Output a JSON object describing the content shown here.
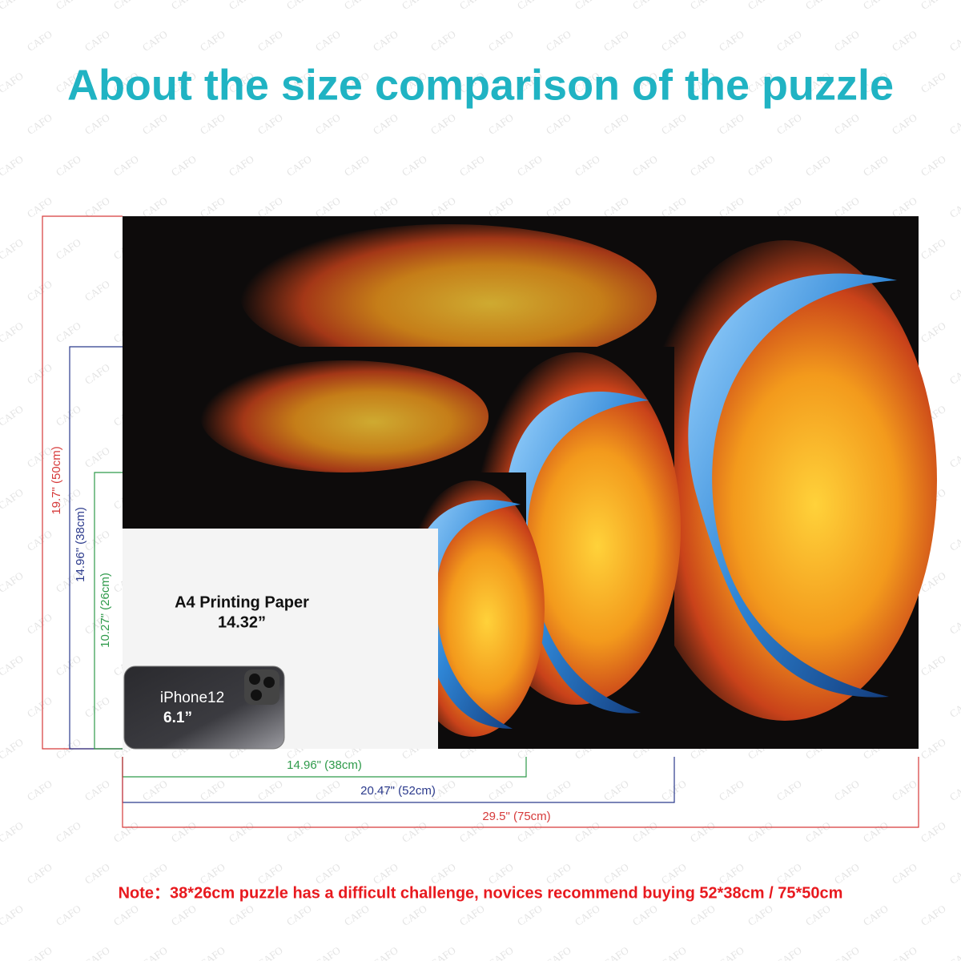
{
  "title": "About the size comparison of the puzzle",
  "watermark": "CAFO",
  "dimensions": {
    "large_height": "19.7\" (50cm)",
    "medium_height": "14.96\" (38cm)",
    "small_height": "10.27\" (26cm)",
    "small_width": "14.96\" (38cm)",
    "medium_width": "20.47\" (52cm)",
    "large_width": "29.5\" (75cm)"
  },
  "paper": {
    "label": "A4 Printing Paper",
    "size": "14.32”"
  },
  "phone": {
    "label": "iPhone12",
    "size": "6.1”"
  },
  "note": "Note：38*26cm puzzle has a difficult challenge, novices recommend buying 52*38cm / 75*50cm"
}
